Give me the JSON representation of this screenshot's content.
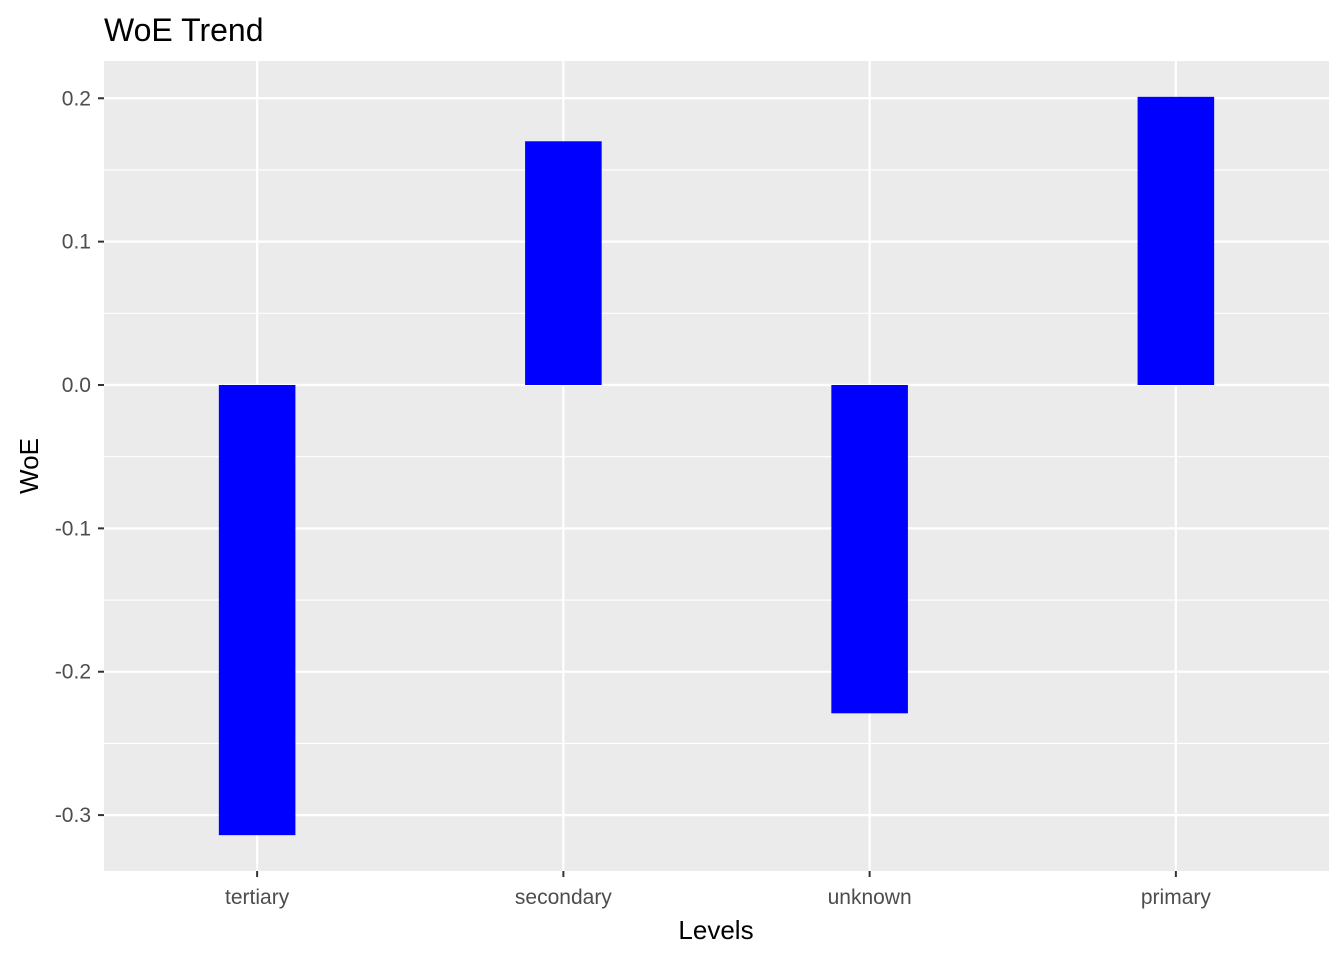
{
  "chart_data": {
    "type": "bar",
    "title": "WoE Trend",
    "xlabel": "Levels",
    "ylabel": "WoE",
    "categories": [
      "tertiary",
      "secondary",
      "unknown",
      "primary"
    ],
    "values": [
      -0.314,
      0.17,
      -0.229,
      0.201
    ],
    "ylim": [
      -0.339,
      0.226
    ],
    "yticks": [
      0.2,
      0.1,
      0.0,
      -0.1,
      -0.2,
      -0.3
    ],
    "ytick_labels": [
      "0.2",
      "0.1",
      "0.0",
      "-0.1",
      "-0.2",
      "-0.3"
    ],
    "bar_color": "#0000FF",
    "panel_background": "#EBEBEB",
    "grid_color": "#FFFFFF",
    "grid": true,
    "legend": "none"
  }
}
